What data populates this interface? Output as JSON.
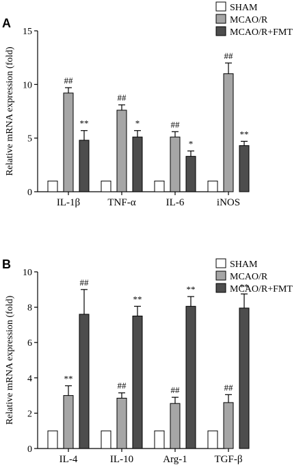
{
  "colors": {
    "sham": "#ffffff",
    "mcao": "#a6a6a6",
    "fmt": "#4d4d4d",
    "axis": "#000000"
  },
  "chart_data": [
    {
      "panel": "A",
      "type": "bar",
      "ylabel": "Relative mRNA expression (fold)",
      "ylim": [
        0,
        15
      ],
      "yticks": [
        0,
        5,
        10,
        15
      ],
      "legend_position": "top-right",
      "categories": [
        "IL-1β",
        "TNF-α",
        "IL-6",
        "iNOS"
      ],
      "series": [
        {
          "name": "SHAM",
          "values": [
            1.0,
            1.0,
            1.0,
            1.0
          ],
          "errors": [
            0.05,
            0.05,
            0.05,
            0.05
          ],
          "marks": [
            "",
            "",
            "",
            ""
          ]
        },
        {
          "name": "MCAO/R",
          "values": [
            9.2,
            7.6,
            5.1,
            11.0
          ],
          "errors": [
            0.5,
            0.5,
            0.5,
            1.0
          ],
          "marks": [
            "##",
            "##",
            "##",
            "##"
          ]
        },
        {
          "name": "MCAO/R+FMT",
          "values": [
            4.8,
            5.1,
            3.3,
            4.3
          ],
          "errors": [
            0.9,
            0.6,
            0.5,
            0.4
          ],
          "marks": [
            "**",
            "*",
            "*",
            "**"
          ]
        }
      ]
    },
    {
      "panel": "B",
      "type": "bar",
      "ylabel": "Relative mRNA expression (fold)",
      "ylim": [
        0,
        10
      ],
      "yticks": [
        0,
        2,
        4,
        6,
        8,
        10
      ],
      "legend_position": "top-right",
      "categories": [
        "IL-4",
        "IL-10",
        "Arg-1",
        "TGF-β"
      ],
      "series": [
        {
          "name": "SHAM",
          "values": [
            1.0,
            1.0,
            1.0,
            1.0
          ],
          "errors": [
            0.03,
            0.03,
            0.03,
            0.03
          ],
          "marks": [
            "",
            "",
            "",
            ""
          ]
        },
        {
          "name": "MCAO/R",
          "values": [
            3.0,
            2.85,
            2.55,
            2.6
          ],
          "errors": [
            0.55,
            0.3,
            0.35,
            0.45
          ],
          "marks": [
            "**",
            "##",
            "##",
            "##"
          ]
        },
        {
          "name": "MCAO/R+FMT",
          "values": [
            7.6,
            7.5,
            8.05,
            7.95
          ],
          "errors": [
            1.4,
            0.55,
            0.55,
            0.8
          ],
          "marks": [
            "##",
            "**",
            "**",
            "**"
          ]
        }
      ]
    }
  ]
}
